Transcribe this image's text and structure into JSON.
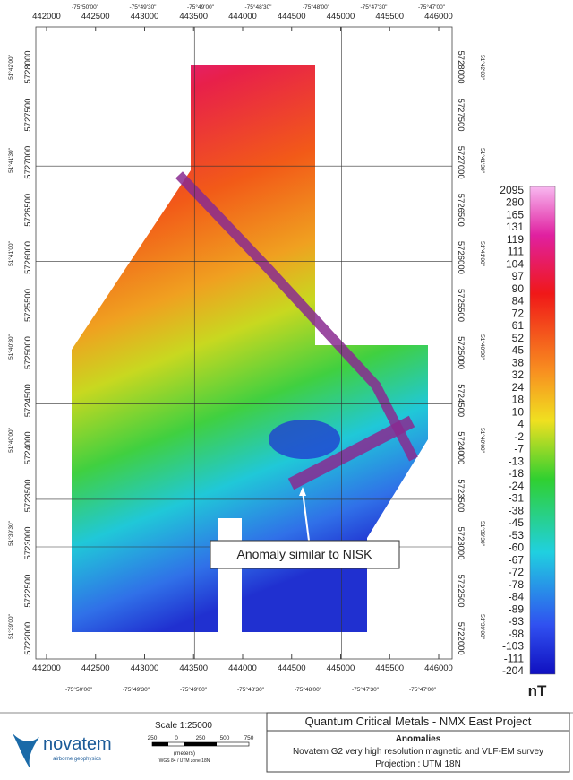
{
  "map": {
    "eastings": [
      442000,
      442500,
      443000,
      443500,
      444000,
      444500,
      445000,
      445500,
      446000
    ],
    "longitudes": [
      "-75°50'00\"",
      "-75°49'30\"",
      "-75°49'00\"",
      "-75°48'30\"",
      "-75°48'00\"",
      "-75°47'30\"",
      "-75°47'00\""
    ],
    "northings": [
      5728000,
      5727500,
      5727000,
      5726500,
      5726000,
      5725500,
      5725000,
      5724500,
      5724000,
      5723500,
      5723000,
      5722500,
      5722000
    ],
    "latitudes": [
      "51°42'00\"",
      "51°41'30\"",
      "51°41'00\"",
      "51°40'30\"",
      "51°40'00\"",
      "51°39'30\"",
      "51°39'00\""
    ],
    "colorbar": {
      "labels": [
        2095,
        280,
        165,
        131,
        119,
        111,
        104,
        97,
        90,
        84,
        72,
        61,
        52,
        45,
        38,
        32,
        24,
        18,
        10,
        4,
        -2,
        -7,
        -13,
        -18,
        -24,
        -31,
        -38,
        -45,
        -53,
        -60,
        -67,
        -72,
        -78,
        -84,
        -89,
        -93,
        -98,
        -103,
        -111,
        -204
      ],
      "unit": "nT"
    },
    "annotation": "Anomaly similar to NISK"
  },
  "title_block": {
    "title": "Quantum Critical Metals - NMX East Project",
    "subtitle": "Anomalies",
    "description": "Novatem G2 very high resolution magnetic and VLF-EM survey",
    "projection": "Projection : UTM 18N"
  },
  "scale": {
    "title": "Scale 1:25000",
    "ticks": [
      "250",
      "0",
      "250",
      "500",
      "750"
    ],
    "unit": "(meters)",
    "datum": "WGS 84 / UTM zone 18N"
  },
  "logo": {
    "name": "novatem",
    "tagline": "airborne geophysics"
  }
}
